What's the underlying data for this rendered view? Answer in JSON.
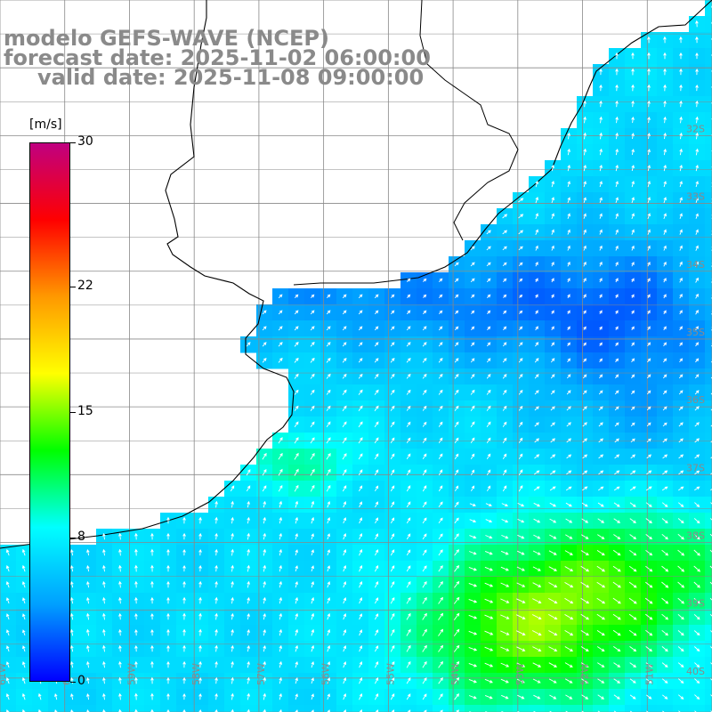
{
  "title": {
    "line1": "modelo GEFS-WAVE (NCEP)",
    "line2": "forecast date: 2025-11-02 06:00:00",
    "line3": "valid date: 2025-11-08 09:00:00"
  },
  "colorbar": {
    "unit": "[m/s]",
    "tick_labels": [
      "30",
      "22",
      "15",
      "8",
      "0"
    ],
    "tick_values": [
      30,
      22,
      15,
      8,
      0
    ],
    "min": 0,
    "max": 30,
    "colors": [
      "#0000ff",
      "#00a0ff",
      "#00ffff",
      "#00ff00",
      "#ffff00",
      "#ff9900",
      "#ff0000",
      "#c00080"
    ]
  },
  "map": {
    "lat_labels": [
      "32S",
      "33S",
      "34S",
      "35S",
      "36S",
      "37S",
      "38S",
      "39S",
      "40S"
    ],
    "lon_labels": [
      "61W",
      "60W",
      "59W",
      "58W",
      "57W",
      "56W",
      "55W",
      "54W",
      "53W",
      "52W",
      "51W"
    ],
    "lat_range": [
      -40.5,
      -30
    ],
    "lon_range": [
      -61,
      -50
    ],
    "grid": true,
    "land_color": "#ffffff",
    "arrow_color": "#ffffff",
    "coast_color": "#000000"
  }
}
